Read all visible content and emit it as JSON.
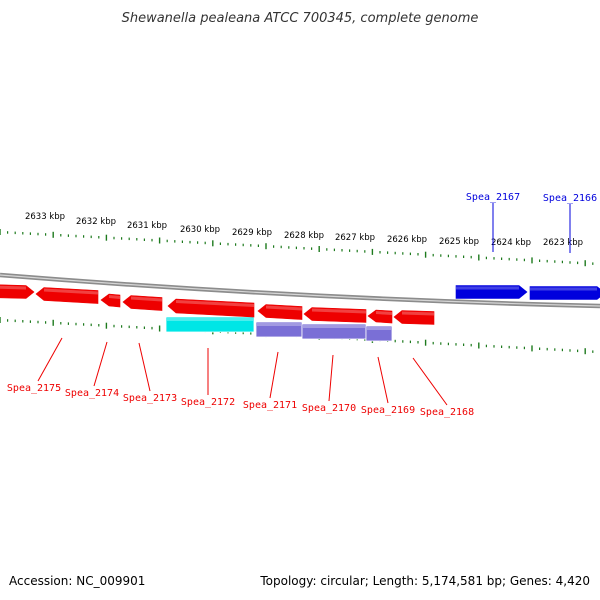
{
  "title": "Shewanella pealeana ATCC 700345, complete genome",
  "colors": {
    "forward_gene": "#0000dd",
    "reverse_gene": "#ee0000",
    "cds_cyan": "#00e6e6",
    "cds_purple": "#7a6fd6",
    "ruler_ticks": "#1d7a1d",
    "backbone": "#8c8c8c"
  },
  "ruler_ticks": [
    "2633 kbp",
    "2632 kbp",
    "2631 kbp",
    "2630 kbp",
    "2629 kbp",
    "2628 kbp",
    "2627 kbp",
    "2626 kbp",
    "2625 kbp",
    "2624 kbp",
    "2623 kbp"
  ],
  "forward_genes": [
    "Spea_2167",
    "Spea_2166"
  ],
  "reverse_genes": [
    "Spea_2175",
    "Spea_2174",
    "Spea_2173",
    "Spea_2172",
    "Spea_2171",
    "Spea_2170",
    "Spea_2169",
    "Spea_2168"
  ],
  "footer": {
    "accession": "Accession: NC_009901",
    "summary": "Topology: circular; Length: 5,174,581 bp; Genes: 4,420"
  }
}
